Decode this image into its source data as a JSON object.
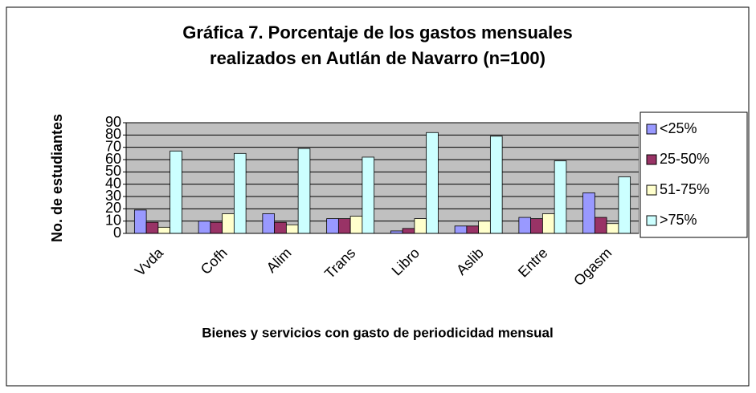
{
  "chart_data": {
    "type": "bar",
    "title": "Gráfica 7. Porcentaje de los gastos mensuales",
    "subtitle": "realizados en Autlán de Navarro (n=100)",
    "ylabel": "No. de estudiantes",
    "xlabel": "Bienes y servicios con gasto de periodicidad mensual",
    "categories": [
      "Vvda",
      "Cofh",
      "Alim",
      "Trans",
      "Libro",
      "Aslib",
      "Entre",
      "Ogasm"
    ],
    "series": [
      {
        "name": "<25%",
        "color": "#9999ff",
        "values": [
          19,
          10,
          16,
          12,
          2,
          6,
          13,
          33
        ]
      },
      {
        "name": "25-50%",
        "color": "#993366",
        "values": [
          9,
          9,
          9,
          12,
          4,
          6,
          12,
          13
        ]
      },
      {
        "name": "51-75%",
        "color": "#ffffcc",
        "values": [
          5,
          16,
          7,
          14,
          12,
          10,
          16,
          8
        ]
      },
      {
        "name": ">75%",
        "color": "#ccffff",
        "values": [
          67,
          65,
          69,
          62,
          82,
          79,
          59,
          46
        ]
      }
    ],
    "ylim": [
      0,
      90
    ],
    "yticks": [
      0,
      10,
      20,
      30,
      40,
      50,
      60,
      70,
      80,
      90
    ],
    "grid": true,
    "legend": "right"
  }
}
